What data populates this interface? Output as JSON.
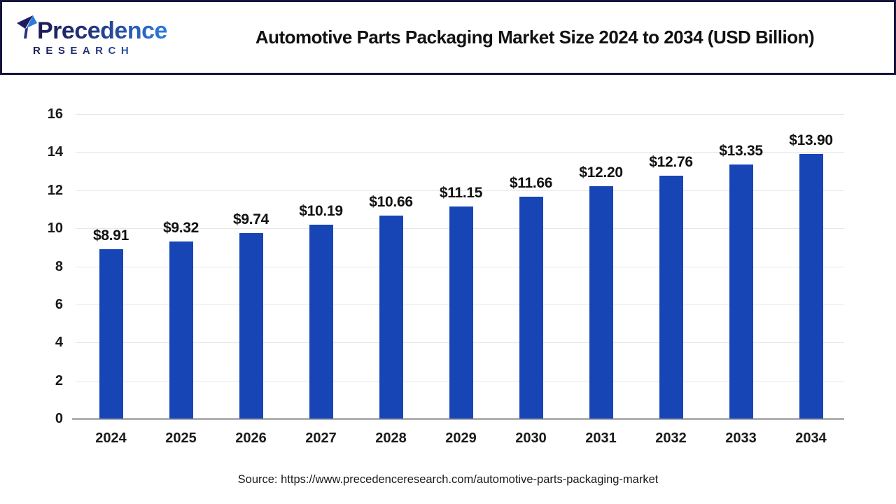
{
  "header": {
    "logo_line1": "Precedence",
    "logo_line2": "RESEARCH",
    "title": "Automotive Parts Packaging Market Size 2024 to 2034 (USD Billion)"
  },
  "chart_data": {
    "type": "bar",
    "title": "Automotive Parts Packaging Market Size 2024 to 2034 (USD Billion)",
    "categories": [
      "2024",
      "2025",
      "2026",
      "2027",
      "2028",
      "2029",
      "2030",
      "2031",
      "2032",
      "2033",
      "2034"
    ],
    "values": [
      8.91,
      9.32,
      9.74,
      10.19,
      10.66,
      11.15,
      11.66,
      12.2,
      12.76,
      13.35,
      13.9
    ],
    "value_labels": [
      "$8.91",
      "$9.32",
      "$9.74",
      "$10.19",
      "$10.66",
      "$11.15",
      "$11.66",
      "$12.20",
      "$12.76",
      "$13.35",
      "$13.90"
    ],
    "xlabel": "",
    "ylabel": "",
    "ylim": [
      0,
      16
    ],
    "yticks": [
      0,
      2,
      4,
      6,
      8,
      10,
      12,
      14,
      16
    ],
    "grid": true,
    "legend": "none",
    "bar_color": "#1745b6",
    "gridline_color": "#e7e7e7",
    "axis_line_color": "#b1b1b1"
  },
  "footer": {
    "source": "Source: https://www.precedenceresearch.com/automotive-parts-packaging-market"
  },
  "colors": {
    "header_border": "#14143f",
    "logo_gradient_start": "#1b1b55",
    "logo_gradient_end": "#2e7be0"
  }
}
